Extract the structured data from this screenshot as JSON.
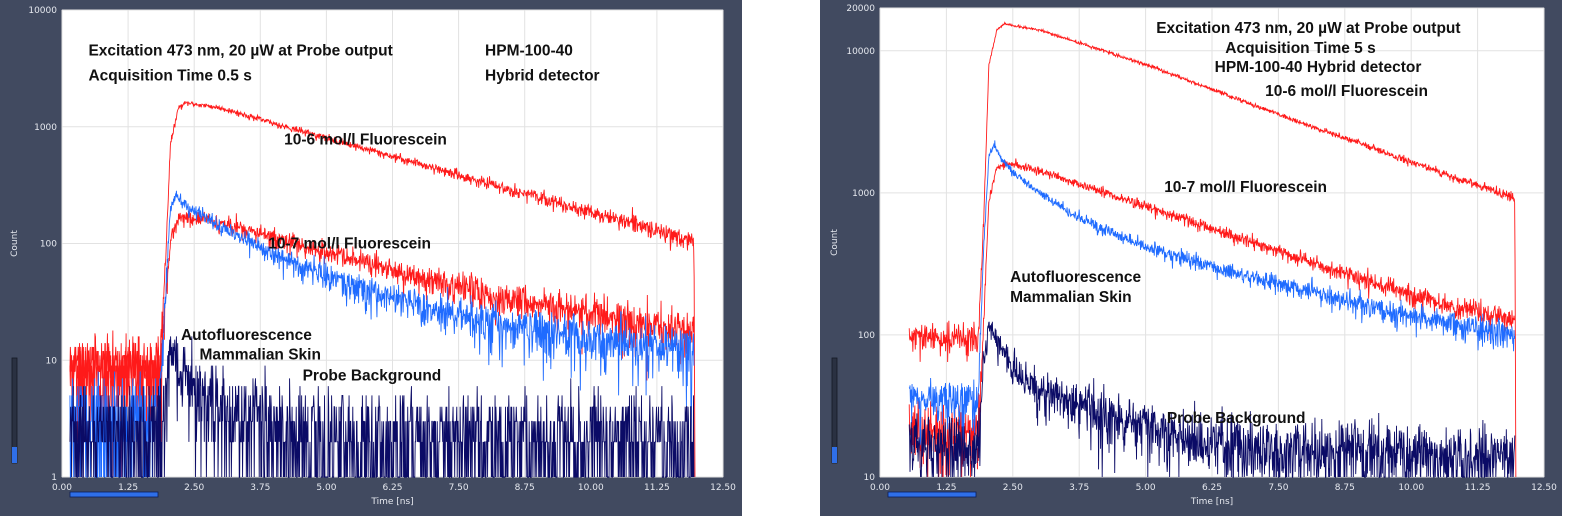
{
  "chart_data": [
    {
      "type": "line",
      "xlabel": "Time [ns]",
      "ylabel": "Count",
      "xlim": [
        0,
        12.5
      ],
      "ylim": [
        1,
        10000
      ],
      "yscale": "log",
      "grid": true,
      "x_ticks": [
        "0.00",
        "1.25",
        "2.50",
        "3.75",
        "5.00",
        "6.25",
        "7.50",
        "8.75",
        "10.00",
        "11.25",
        "12.50"
      ],
      "y_ticks": [
        {
          "value": 1,
          "label": "1"
        },
        {
          "value": 10,
          "label": "10"
        },
        {
          "value": 100,
          "label": "100"
        },
        {
          "value": 1000,
          "label": "1000"
        },
        {
          "value": 10000,
          "label": "10000"
        }
      ],
      "annotations": [
        {
          "text": "Excitation 473 nm, 20 µW at Probe output",
          "x": 0.5,
          "y": 4500
        },
        {
          "text": "Acquisition Time 0.5 s",
          "x": 0.5,
          "y": 2750
        },
        {
          "text": "HPM-100-40",
          "x": 8.0,
          "y": 4500
        },
        {
          "text": "Hybrid detector",
          "x": 8.0,
          "y": 2750
        },
        {
          "text": "10-6 mol/l Fluorescein",
          "x": 4.2,
          "y": 780
        },
        {
          "text": "10-7 mol/l Fluorescein",
          "x": 3.9,
          "y": 100
        },
        {
          "text": "Autofluorescence",
          "x": 2.25,
          "y": 16.5
        },
        {
          "text": "Mammalian Skin",
          "x": 2.6,
          "y": 11.2
        },
        {
          "text": "Probe Background",
          "x": 4.55,
          "y": 7.4
        }
      ],
      "series": [
        {
          "name": "10-6 mol/l Fluorescein",
          "color": "#ff1a1a",
          "x": [
            0.15,
            1.85,
            1.95,
            2.05,
            2.2,
            2.35,
            3.0,
            4.0,
            5.0,
            6.0,
            7.0,
            8.0,
            9.0,
            10.0,
            11.0,
            11.95,
            11.97
          ],
          "y": [
            9,
            9,
            60,
            700,
            1450,
            1600,
            1450,
            1070,
            800,
            600,
            450,
            330,
            250,
            185,
            140,
            105,
            1
          ]
        },
        {
          "name": "10-7 mol/l Fluorescein",
          "color": "#ff1a1a",
          "x": [
            0.15,
            1.85,
            1.95,
            2.05,
            2.2,
            2.4,
            3.0,
            4.0,
            5.0,
            6.0,
            7.0,
            8.0,
            9.0,
            10.0,
            11.0,
            11.95
          ],
          "y": [
            8,
            8,
            25,
            110,
            165,
            170,
            150,
            112,
            84,
            63,
            48,
            37,
            30,
            25,
            21,
            18
          ]
        },
        {
          "name": "Autofluorescence Mammalian Skin",
          "color": "#1f6bff",
          "x": [
            0.15,
            1.85,
            1.95,
            2.05,
            2.15,
            2.3,
            2.6,
            3.0,
            3.5,
            4.0,
            5.0,
            6.0,
            7.0,
            8.0,
            9.0,
            10.0,
            11.0,
            11.95
          ],
          "y": [
            3,
            3,
            30,
            200,
            270,
            220,
            175,
            140,
            105,
            80,
            52,
            37,
            28,
            22,
            18,
            15,
            13,
            12
          ]
        },
        {
          "name": "Probe Background",
          "color": "#0b0b66",
          "x": [
            0.15,
            1.85,
            1.95,
            2.05,
            2.3,
            2.6,
            3.0,
            4.0,
            5.0,
            6.0,
            8.0,
            10.0,
            11.95
          ],
          "y": [
            2.5,
            2.5,
            6,
            13,
            7,
            5,
            3.5,
            2.5,
            2.2,
            2.0,
            2.0,
            2.0,
            2.0
          ]
        }
      ]
    },
    {
      "type": "line",
      "xlabel": "Time [ns]",
      "ylabel": "Count",
      "xlim": [
        0,
        12.5
      ],
      "ylim": [
        10,
        20000
      ],
      "yscale": "log",
      "grid": true,
      "x_ticks": [
        "0.00",
        "1.25",
        "2.50",
        "3.75",
        "5.00",
        "6.25",
        "7.50",
        "8.75",
        "10.00",
        "11.25",
        "12.50"
      ],
      "y_ticks": [
        {
          "value": 10,
          "label": "10"
        },
        {
          "value": 100,
          "label": "100"
        },
        {
          "value": 1000,
          "label": "1000"
        },
        {
          "value": 10000,
          "label": "10000"
        },
        {
          "value": 20000,
          "label": "20000"
        }
      ],
      "annotations": [
        {
          "text": "Excitation 473 nm, 20 µW at Probe output",
          "x": 5.2,
          "y": 14500
        },
        {
          "text": "Acquisition Time 5 s",
          "x": 6.5,
          "y": 10500
        },
        {
          "text": "HPM-100-40 Hybrid detector",
          "x": 6.3,
          "y": 7700
        },
        {
          "text": "10-6 mol/l Fluorescein",
          "x": 7.25,
          "y": 5200
        },
        {
          "text": "10-7 mol/l Fluorescein",
          "x": 5.35,
          "y": 1100
        },
        {
          "text": "Autofluorescence",
          "x": 2.45,
          "y": 255
        },
        {
          "text": "Mammalian Skin",
          "x": 2.45,
          "y": 185
        },
        {
          "text": "Probe Background",
          "x": 5.4,
          "y": 26
        }
      ],
      "series": [
        {
          "name": "10-6 mol/l Fluorescein",
          "color": "#ff1a1a",
          "x": [
            0.55,
            1.85,
            1.95,
            2.05,
            2.2,
            2.35,
            2.5,
            3.0,
            4.0,
            5.0,
            6.0,
            7.0,
            8.0,
            9.0,
            10.0,
            11.0,
            11.95,
            11.97
          ],
          "y": [
            95,
            95,
            600,
            8000,
            14000,
            15500,
            15000,
            14000,
            10600,
            8000,
            5800,
            4200,
            3050,
            2250,
            1650,
            1220,
            920,
            10
          ]
        },
        {
          "name": "10-7 mol/l Fluorescein",
          "color": "#ff1a1a",
          "x": [
            0.55,
            1.85,
            1.95,
            2.05,
            2.2,
            2.4,
            3.0,
            4.0,
            5.0,
            6.0,
            7.0,
            8.0,
            9.0,
            10.0,
            11.0,
            11.95
          ],
          "y": [
            20,
            20,
            120,
            900,
            1500,
            1600,
            1430,
            1070,
            800,
            600,
            450,
            335,
            252,
            192,
            150,
            128
          ]
        },
        {
          "name": "Autofluorescence Mammalian Skin",
          "color": "#1f6bff",
          "x": [
            0.55,
            1.85,
            1.95,
            2.05,
            2.15,
            2.3,
            2.6,
            3.0,
            3.5,
            4.0,
            5.0,
            6.0,
            7.0,
            8.0,
            9.0,
            10.0,
            11.0,
            11.95
          ],
          "y": [
            35,
            35,
            400,
            1800,
            2200,
            1700,
            1300,
            1000,
            760,
            600,
            420,
            320,
            255,
            205,
            165,
            135,
            113,
            100
          ]
        },
        {
          "name": "Probe Background",
          "color": "#0b0b66",
          "x": [
            0.55,
            1.85,
            1.95,
            2.05,
            2.3,
            2.6,
            3.0,
            4.0,
            5.0,
            6.0,
            8.0,
            10.0,
            11.95
          ],
          "y": [
            16,
            16,
            60,
            120,
            75,
            52,
            40,
            30,
            22,
            18,
            15,
            14,
            14
          ]
        }
      ]
    }
  ]
}
